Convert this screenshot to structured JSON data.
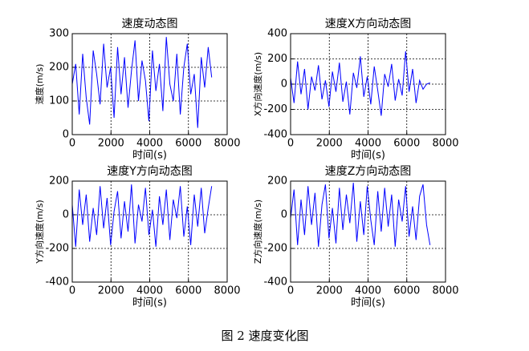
{
  "chart_data": [
    {
      "type": "line",
      "title": "速度动态图",
      "x_label": "时间(s)",
      "y_label": "速度(m/s)",
      "color": "#0000ff",
      "grid": true,
      "x": [
        0,
        180,
        360,
        540,
        720,
        900,
        1080,
        1260,
        1440,
        1620,
        1800,
        1980,
        2160,
        2340,
        2520,
        2700,
        2880,
        3060,
        3240,
        3420,
        3600,
        3780,
        3960,
        4140,
        4320,
        4500,
        4680,
        4860,
        5040,
        5220,
        5400,
        5580,
        5760,
        5940,
        6120,
        6300,
        6480,
        6660,
        6840,
        7020,
        7200
      ],
      "values": [
        150,
        210,
        60,
        240,
        110,
        30,
        250,
        180,
        90,
        270,
        140,
        200,
        50,
        260,
        120,
        230,
        80,
        190,
        280,
        100,
        220,
        160,
        40,
        250,
        130,
        210,
        70,
        290,
        150,
        100,
        240,
        60,
        200,
        270,
        120,
        180,
        20,
        230,
        140,
        260,
        170
      ],
      "xlim": [
        0,
        8000
      ],
      "xticks": [
        0,
        2000,
        4000,
        6000,
        8000
      ],
      "ylim": [
        0,
        300
      ],
      "yticks": [
        0,
        100,
        200,
        300
      ]
    },
    {
      "type": "line",
      "title": "速度X方向动态图",
      "x_label": "时间(s)",
      "y_label": "X方向速度(m/s)",
      "color": "#0000ff",
      "grid": true,
      "x": [
        0,
        180,
        360,
        540,
        720,
        900,
        1080,
        1260,
        1440,
        1620,
        1800,
        1980,
        2160,
        2340,
        2520,
        2700,
        2880,
        3060,
        3240,
        3420,
        3600,
        3780,
        3960,
        4140,
        4320,
        4500,
        4680,
        4860,
        5040,
        5220,
        5400,
        5580,
        5760,
        5940,
        6120,
        6300,
        6480,
        6660,
        6840,
        7020,
        7200
      ],
      "values": [
        50,
        -150,
        180,
        -80,
        120,
        -200,
        60,
        -50,
        150,
        -120,
        30,
        -180,
        100,
        -60,
        170,
        -140,
        20,
        -240,
        90,
        -30,
        220,
        -100,
        60,
        -160,
        140,
        -50,
        -250,
        80,
        -20,
        160,
        -130,
        40,
        -90,
        260,
        -60,
        120,
        -150,
        30,
        -40,
        0,
        10
      ],
      "xlim": [
        0,
        8000
      ],
      "xticks": [
        0,
        2000,
        4000,
        6000,
        8000
      ],
      "ylim": [
        -400,
        400
      ],
      "yticks": [
        -400,
        -200,
        0,
        200,
        400
      ]
    },
    {
      "type": "line",
      "title": "速度Y方向动态图",
      "x_label": "时间(s)",
      "y_label": "Y方向速度(m/s)",
      "color": "#0000ff",
      "grid": true,
      "x": [
        0,
        180,
        360,
        540,
        720,
        900,
        1080,
        1260,
        1440,
        1620,
        1800,
        1980,
        2160,
        2340,
        2520,
        2700,
        2880,
        3060,
        3240,
        3420,
        3600,
        3780,
        3960,
        4140,
        4320,
        4500,
        4680,
        4860,
        5040,
        5220,
        5400,
        5580,
        5760,
        5940,
        6120,
        6300,
        6480,
        6660,
        6840,
        7020,
        7200
      ],
      "values": [
        60,
        -190,
        150,
        -60,
        120,
        -160,
        40,
        -120,
        170,
        -80,
        100,
        -180,
        20,
        140,
        -140,
        80,
        -100,
        180,
        -170,
        60,
        -40,
        160,
        -120,
        30,
        -190,
        110,
        -60,
        150,
        -150,
        90,
        -20,
        170,
        -130,
        50,
        -180,
        120,
        -70,
        160,
        -110,
        40,
        170
      ],
      "xlim": [
        0,
        8000
      ],
      "xticks": [
        0,
        2000,
        4000,
        6000,
        8000
      ],
      "ylim": [
        -400,
        200
      ],
      "yticks": [
        -400,
        -200,
        0,
        200
      ]
    },
    {
      "type": "line",
      "title": "速度Z方向动态图",
      "x_label": "时间(s)",
      "y_label": "Z方向速度(m/s)",
      "color": "#0000ff",
      "grid": true,
      "x": [
        0,
        180,
        360,
        540,
        720,
        900,
        1080,
        1260,
        1440,
        1620,
        1800,
        1980,
        2160,
        2340,
        2520,
        2700,
        2880,
        3060,
        3240,
        3420,
        3600,
        3780,
        3960,
        4140,
        4320,
        4500,
        4680,
        4860,
        5040,
        5220,
        5400,
        5580,
        5760,
        5940,
        6120,
        6300,
        6480,
        6660,
        6840,
        7020,
        7200
      ],
      "values": [
        -20,
        150,
        -180,
        90,
        -120,
        170,
        -60,
        130,
        -190,
        60,
        180,
        -140,
        40,
        -170,
        160,
        -90,
        120,
        -50,
        190,
        -160,
        80,
        -120,
        170,
        -30,
        -180,
        140,
        -100,
        160,
        -70,
        120,
        -190,
        90,
        -40,
        170,
        -130,
        50,
        -150,
        110,
        180,
        -60,
        -180
      ],
      "xlim": [
        0,
        8000
      ],
      "xticks": [
        0,
        2000,
        4000,
        6000,
        8000
      ],
      "ylim": [
        -400,
        200
      ],
      "yticks": [
        -400,
        -200,
        0,
        200
      ]
    }
  ],
  "caption": "图 2  速度变化图"
}
